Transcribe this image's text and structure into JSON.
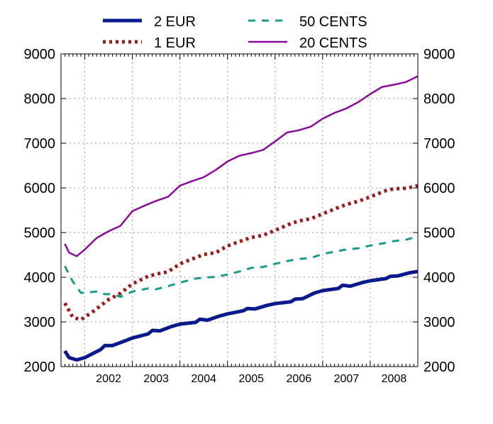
{
  "chart_data": {
    "type": "line",
    "title": "",
    "xlabel": "",
    "ylabel": "",
    "xlim": [
      2001.5,
      2009.0
    ],
    "ylim": [
      2000,
      9000
    ],
    "yticks": [
      2000,
      3000,
      4000,
      5000,
      6000,
      7000,
      8000,
      9000
    ],
    "year_labels": [
      "2002",
      "2003",
      "2004",
      "2005",
      "2006",
      "2007",
      "2008"
    ],
    "grid": true,
    "right_axis": true,
    "legend_position": "top",
    "series": [
      {
        "name": "2 EUR",
        "color": "#0a1a8c",
        "style": "solid-thick",
        "x": [
          2001.58,
          2001.67,
          2001.83,
          2002.0,
          2002.33,
          2002.42,
          2002.58,
          2002.83,
          2003.0,
          2003.33,
          2003.42,
          2003.58,
          2003.83,
          2004.0,
          2004.33,
          2004.42,
          2004.58,
          2004.83,
          2005.0,
          2005.33,
          2005.42,
          2005.58,
          2005.83,
          2006.0,
          2006.33,
          2006.42,
          2006.58,
          2006.83,
          2007.0,
          2007.33,
          2007.42,
          2007.58,
          2007.83,
          2008.0,
          2008.33,
          2008.42,
          2008.58,
          2008.83,
          2009.0
        ],
        "values": [
          2350,
          2200,
          2150,
          2200,
          2380,
          2470,
          2470,
          2570,
          2640,
          2730,
          2810,
          2800,
          2900,
          2950,
          2990,
          3060,
          3040,
          3130,
          3180,
          3250,
          3300,
          3290,
          3370,
          3410,
          3450,
          3510,
          3520,
          3650,
          3700,
          3750,
          3820,
          3800,
          3880,
          3920,
          3970,
          4020,
          4030,
          4100,
          4130
        ]
      },
      {
        "name": "1 EUR",
        "color": "#9b1b1b",
        "style": "dotted",
        "x": [
          2001.58,
          2001.75,
          2001.92,
          2002.17,
          2002.5,
          2002.75,
          2003.0,
          2003.33,
          2003.5,
          2003.75,
          2004.0,
          2004.33,
          2004.5,
          2004.75,
          2005.0,
          2005.33,
          2005.5,
          2005.75,
          2006.0,
          2006.33,
          2006.5,
          2006.75,
          2007.0,
          2007.33,
          2007.5,
          2007.75,
          2008.0,
          2008.33,
          2008.5,
          2008.75,
          2009.0
        ],
        "values": [
          3420,
          3100,
          3050,
          3230,
          3500,
          3640,
          3850,
          4020,
          4070,
          4120,
          4300,
          4440,
          4510,
          4550,
          4700,
          4830,
          4890,
          4940,
          5050,
          5200,
          5260,
          5310,
          5420,
          5560,
          5630,
          5700,
          5800,
          5940,
          5980,
          5990,
          6050
        ]
      },
      {
        "name": "50 CENTS",
        "color": "#1a9b8c",
        "style": "dashed",
        "x": [
          2001.58,
          2001.75,
          2001.92,
          2002.25,
          2002.42,
          2002.58,
          2002.75,
          2003.0,
          2003.33,
          2003.5,
          2003.75,
          2004.0,
          2004.33,
          2004.5,
          2004.75,
          2005.0,
          2005.33,
          2005.5,
          2005.75,
          2006.0,
          2006.33,
          2006.5,
          2006.75,
          2007.0,
          2007.33,
          2007.5,
          2007.75,
          2008.0,
          2008.33,
          2008.5,
          2008.75,
          2009.0
        ],
        "values": [
          4250,
          3900,
          3650,
          3680,
          3620,
          3620,
          3560,
          3680,
          3750,
          3730,
          3800,
          3880,
          3970,
          3990,
          4010,
          4060,
          4150,
          4210,
          4230,
          4300,
          4380,
          4410,
          4430,
          4520,
          4590,
          4620,
          4650,
          4710,
          4770,
          4810,
          4840,
          4910
        ]
      },
      {
        "name": "20 CENTS",
        "color": "#8b0b9b",
        "style": "solid",
        "x": [
          2001.58,
          2001.67,
          2001.83,
          2002.0,
          2002.25,
          2002.5,
          2002.75,
          2003.0,
          2003.25,
          2003.5,
          2003.75,
          2004.0,
          2004.25,
          2004.5,
          2004.75,
          2005.0,
          2005.25,
          2005.5,
          2005.75,
          2006.0,
          2006.25,
          2006.5,
          2006.75,
          2007.0,
          2007.25,
          2007.5,
          2007.75,
          2008.0,
          2008.25,
          2008.5,
          2008.75,
          2009.0
        ],
        "values": [
          4750,
          4550,
          4470,
          4620,
          4880,
          5030,
          5150,
          5480,
          5600,
          5710,
          5800,
          6050,
          6150,
          6240,
          6400,
          6590,
          6720,
          6780,
          6850,
          7040,
          7240,
          7290,
          7370,
          7550,
          7680,
          7780,
          7920,
          8100,
          8260,
          8310,
          8370,
          8500
        ]
      }
    ]
  }
}
